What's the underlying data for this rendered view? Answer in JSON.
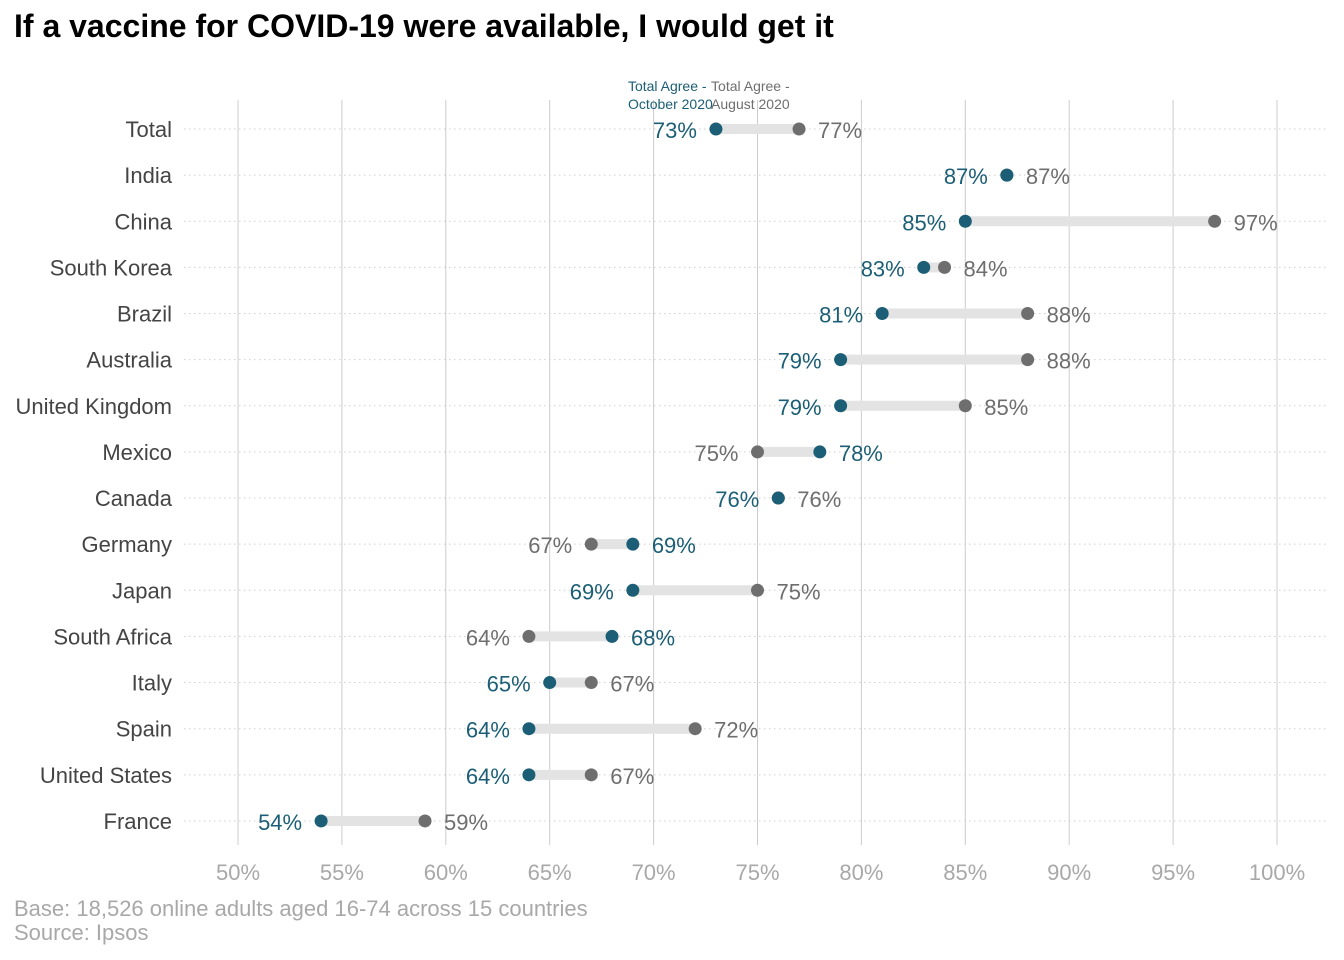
{
  "title": "If a vaccine for COVID-19 were available, I would get it",
  "footer": {
    "base": "Base: 18,526 online adults aged 16-74 across 15 countries",
    "source": "Source: Ipsos"
  },
  "colors": {
    "october": "#1b5e75",
    "august": "#6e6e6e",
    "connector": "#e3e3e3",
    "grid": "#cccccc",
    "row_guide": "#cfcfcf",
    "category_label": "#444444",
    "tick_label": "#a8a8a8"
  },
  "chart_data": {
    "type": "dumbbell",
    "title": "If a vaccine for COVID-19 were available, I would get it",
    "xlabel": "",
    "ylabel": "",
    "xlim": [
      50,
      100
    ],
    "x_ticks": [
      50,
      55,
      60,
      65,
      70,
      75,
      80,
      85,
      90,
      95,
      100
    ],
    "x_tick_labels": [
      "50%",
      "55%",
      "60%",
      "65%",
      "70%",
      "75%",
      "80%",
      "85%",
      "90%",
      "95%",
      "100%"
    ],
    "grid": true,
    "categories": [
      "Total",
      "India",
      "China",
      "South Korea",
      "Brazil",
      "Australia",
      "United Kingdom",
      "Mexico",
      "Canada",
      "Germany",
      "Japan",
      "South Africa",
      "Italy",
      "Spain",
      "United States",
      "France"
    ],
    "series": [
      {
        "name": "Total Agree - October 2020",
        "label_lines": [
          "Total Agree -",
          "October 2020"
        ],
        "values": [
          73,
          87,
          85,
          83,
          81,
          79,
          79,
          78,
          76,
          69,
          69,
          68,
          65,
          64,
          64,
          54
        ],
        "labels": [
          "73%",
          "87%",
          "85%",
          "83%",
          "81%",
          "79%",
          "79%",
          "78%",
          "76%",
          "69%",
          "69%",
          "68%",
          "65%",
          "64%",
          "64%",
          "54%"
        ]
      },
      {
        "name": "Total Agree - August 2020",
        "label_lines": [
          "Total Agree -",
          "August 2020"
        ],
        "values": [
          77,
          87,
          97,
          84,
          88,
          88,
          85,
          75,
          76,
          67,
          75,
          64,
          67,
          72,
          67,
          59
        ],
        "labels": [
          "77%",
          "87%",
          "97%",
          "84%",
          "88%",
          "88%",
          "85%",
          "75%",
          "76%",
          "67%",
          "75%",
          "64%",
          "67%",
          "72%",
          "67%",
          "59%"
        ]
      }
    ]
  }
}
